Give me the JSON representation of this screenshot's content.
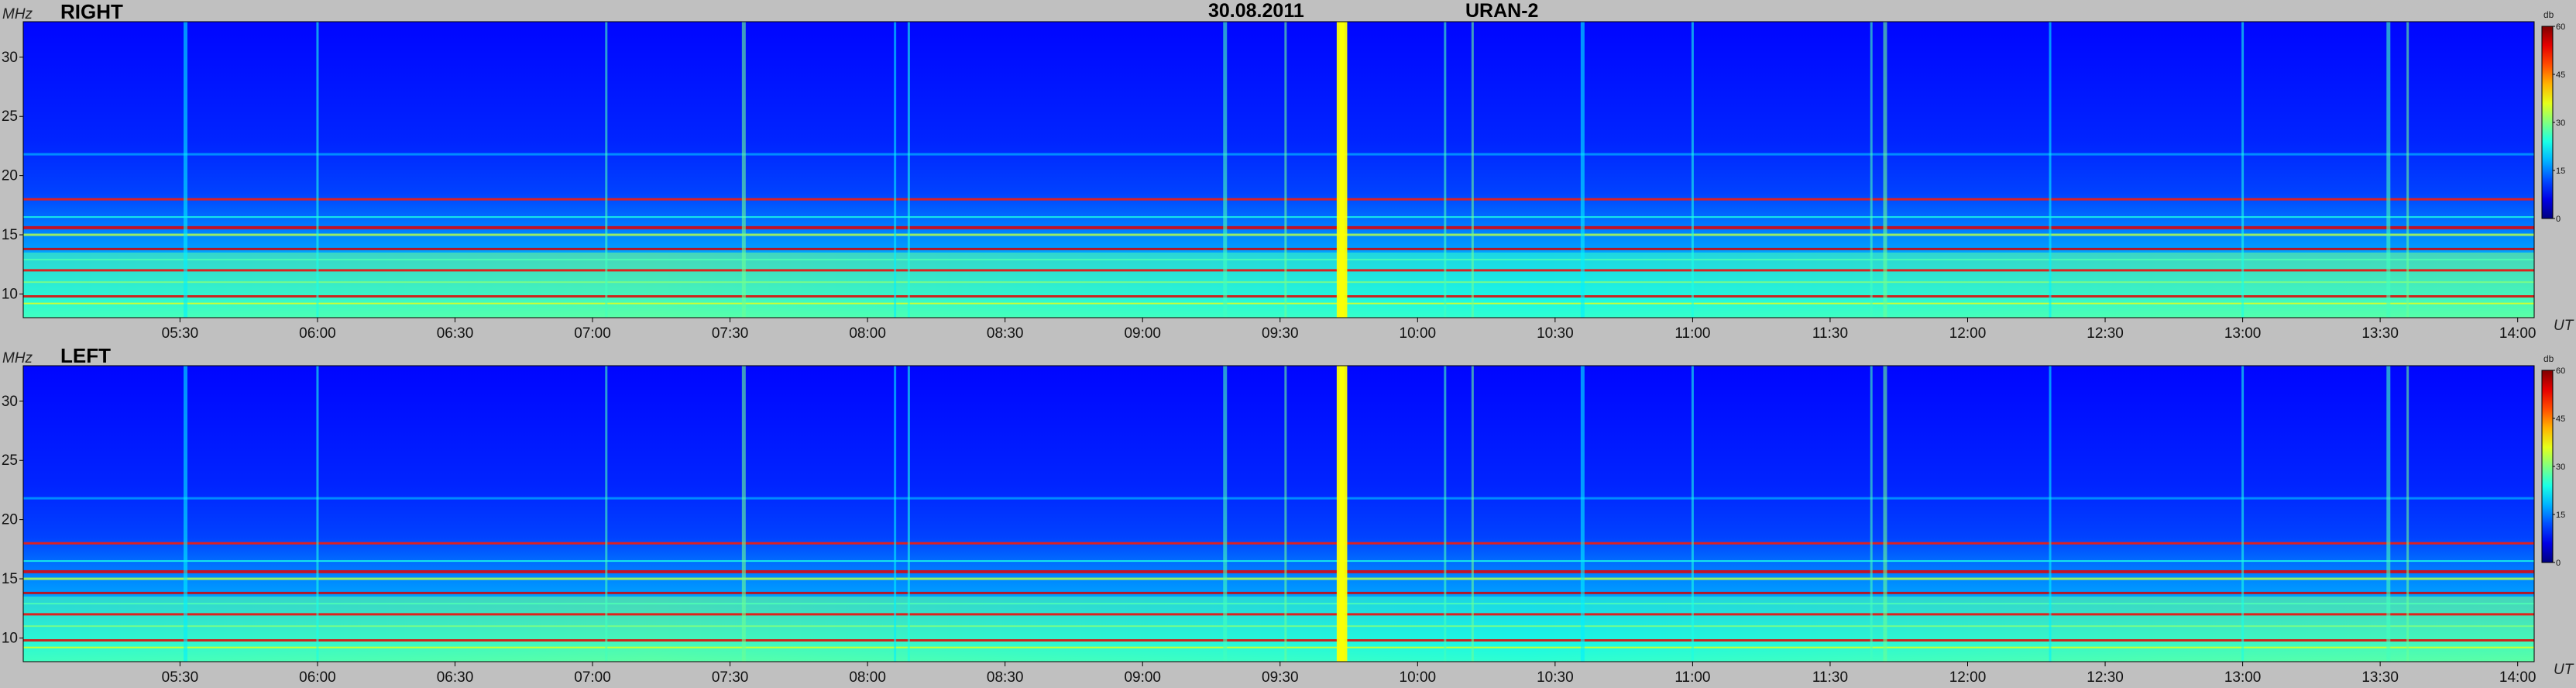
{
  "header": {
    "date": "30.08.2011",
    "instrument": "URAN-2"
  },
  "chart_data": [
    {
      "type": "heatmap",
      "title": "RIGHT",
      "ylabel": "MHz",
      "xlabel": "UT",
      "x_ticks": [
        "05:30",
        "06:00",
        "06:30",
        "07:00",
        "07:30",
        "08:00",
        "08:30",
        "09:00",
        "09:30",
        "10:00",
        "10:30",
        "11:00",
        "11:30",
        "12:00",
        "12:30",
        "13:00",
        "13:30",
        "14:00"
      ],
      "x_tick_hours": [
        5.5,
        6,
        6.5,
        7,
        7.5,
        8,
        8.5,
        9,
        9.5,
        10,
        10.5,
        11,
        11.5,
        12,
        12.5,
        13,
        13.5,
        14
      ],
      "xlim_hours": [
        4.93,
        14.06
      ],
      "y_ticks": [
        "10",
        "15",
        "20",
        "25",
        "30"
      ],
      "y_tick_values": [
        10,
        15,
        20,
        25,
        30
      ],
      "ylim": [
        8.0,
        33.0
      ],
      "colorbar": {
        "unit": "db",
        "ticks": [
          "0",
          "15",
          "30",
          "45",
          "60"
        ],
        "tick_values": [
          0,
          15,
          30,
          45,
          60
        ],
        "range": [
          0,
          60
        ]
      },
      "features": {
        "hline_mhz": [
          21.8,
          18.0,
          16.5,
          15.6,
          15.0,
          13.8,
          12.9,
          12.0,
          11.0,
          9.8,
          9.2
        ],
        "burst_hours": [
          5.52,
          6.0,
          7.05,
          7.55,
          8.1,
          8.15,
          9.3,
          9.52,
          9.72,
          9.73,
          10.1,
          10.2,
          10.6,
          11.0,
          11.65,
          11.7,
          12.3,
          13.0,
          13.53,
          13.6
        ]
      }
    },
    {
      "type": "heatmap",
      "title": "LEFT",
      "ylabel": "MHz",
      "xlabel": "UT",
      "x_ticks": [
        "05:30",
        "06:00",
        "06:30",
        "07:00",
        "07:30",
        "08:00",
        "08:30",
        "09:00",
        "09:30",
        "10:00",
        "10:30",
        "11:00",
        "11:30",
        "12:00",
        "12:30",
        "13:00",
        "13:30",
        "14:00"
      ],
      "x_tick_hours": [
        5.5,
        6,
        6.5,
        7,
        7.5,
        8,
        8.5,
        9,
        9.5,
        10,
        10.5,
        11,
        11.5,
        12,
        12.5,
        13,
        13.5,
        14
      ],
      "xlim_hours": [
        4.93,
        14.06
      ],
      "y_ticks": [
        "10",
        "15",
        "20",
        "25",
        "30"
      ],
      "y_tick_values": [
        10,
        15,
        20,
        25,
        30
      ],
      "ylim": [
        8.0,
        33.0
      ],
      "colorbar": {
        "unit": "db",
        "ticks": [
          "0",
          "15",
          "30",
          "45",
          "60"
        ],
        "tick_values": [
          0,
          15,
          30,
          45,
          60
        ],
        "range": [
          0,
          60
        ]
      },
      "features": {
        "hline_mhz": [
          21.8,
          18.0,
          16.5,
          15.6,
          15.0,
          13.8,
          12.9,
          12.0,
          11.0,
          9.8,
          9.2
        ],
        "burst_hours": [
          5.52,
          6.0,
          7.05,
          7.55,
          8.1,
          8.15,
          9.3,
          9.52,
          9.72,
          9.73,
          10.1,
          10.2,
          10.6,
          11.0,
          11.65,
          11.7,
          12.3,
          13.0,
          13.53,
          13.6
        ]
      }
    }
  ]
}
